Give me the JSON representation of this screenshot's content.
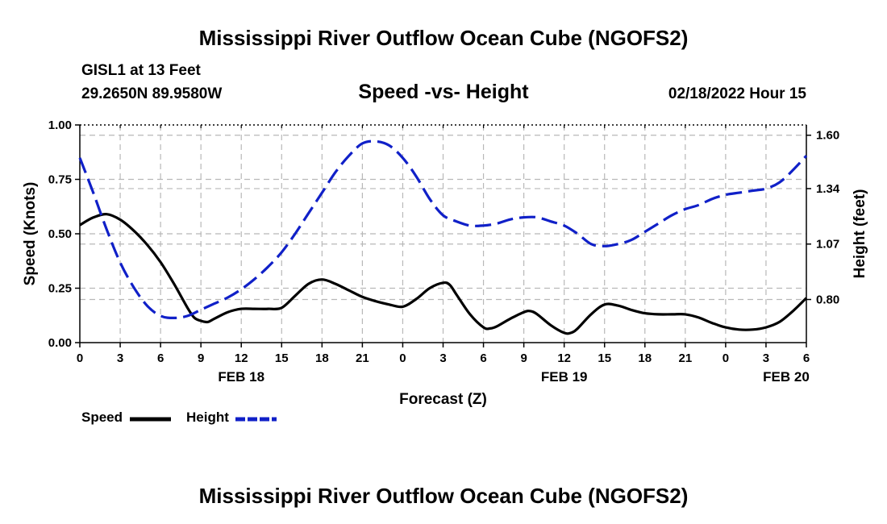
{
  "page": {
    "title_top": "Mississippi River Outflow Ocean Cube (NGOFS2)",
    "title_bottom": "Mississippi River Outflow Ocean Cube (NGOFS2)",
    "station": "GISL1 at 13 Feet",
    "coords": "29.2650N  89.9580W",
    "subtitle": "Speed -vs- Height",
    "datetime": "02/18/2022 Hour 15",
    "legend": {
      "speed_label": "Speed",
      "height_label": "Height"
    }
  },
  "chart_data": {
    "type": "line",
    "title": "Speed -vs- Height",
    "xlabel": "Forecast (Z)",
    "ylabel": "Speed (Knots)",
    "y2label": "Height (feet)",
    "grid": true,
    "legend_position": "bottom-left",
    "x_range": [
      0,
      54
    ],
    "ylim": [
      0,
      1.0
    ],
    "y2lim": [
      0.59,
      1.65
    ],
    "x_ticks": [
      0,
      3,
      6,
      9,
      12,
      15,
      18,
      21,
      24,
      27,
      30,
      33,
      36,
      39,
      42,
      45,
      48,
      51,
      54
    ],
    "x_tick_labels": [
      "0",
      "3",
      "6",
      "9",
      "12",
      "15",
      "18",
      "21",
      "0",
      "3",
      "6",
      "9",
      "12",
      "15",
      "18",
      "21",
      "0",
      "3",
      "6"
    ],
    "date_labels": [
      {
        "x": 12,
        "label": "FEB 18"
      },
      {
        "x": 36,
        "label": "FEB 19"
      },
      {
        "x": 52.5,
        "label": "FEB 20"
      }
    ],
    "y_ticks": [
      0,
      0.25,
      0.5,
      0.75,
      1.0
    ],
    "y_tick_labels": [
      "0.00",
      "0.25",
      "0.50",
      "0.75",
      "1.00"
    ],
    "y2_ticks": [
      0.8,
      1.07,
      1.34,
      1.6
    ],
    "y2_tick_labels": [
      "0.80",
      "1.07",
      "1.34",
      "1.60"
    ],
    "series": [
      {
        "name": "Speed",
        "axis": "left",
        "color": "#000000",
        "style": "solid",
        "points": [
          [
            0,
            0.54
          ],
          [
            1,
            0.575
          ],
          [
            2,
            0.59
          ],
          [
            3,
            0.565
          ],
          [
            4,
            0.515
          ],
          [
            5,
            0.45
          ],
          [
            6,
            0.37
          ],
          [
            7,
            0.27
          ],
          [
            8,
            0.16
          ],
          [
            8.5,
            0.115
          ],
          [
            9,
            0.1
          ],
          [
            9.5,
            0.095
          ],
          [
            10,
            0.11
          ],
          [
            11,
            0.14
          ],
          [
            12,
            0.155
          ],
          [
            13,
            0.155
          ],
          [
            14,
            0.155
          ],
          [
            15,
            0.16
          ],
          [
            16,
            0.215
          ],
          [
            17,
            0.27
          ],
          [
            18,
            0.29
          ],
          [
            19,
            0.27
          ],
          [
            20,
            0.24
          ],
          [
            21,
            0.21
          ],
          [
            22,
            0.19
          ],
          [
            23,
            0.175
          ],
          [
            24,
            0.165
          ],
          [
            25,
            0.2
          ],
          [
            26,
            0.25
          ],
          [
            27,
            0.275
          ],
          [
            27.5,
            0.265
          ],
          [
            28,
            0.22
          ],
          [
            29,
            0.13
          ],
          [
            30,
            0.07
          ],
          [
            30.5,
            0.065
          ],
          [
            31,
            0.075
          ],
          [
            32,
            0.11
          ],
          [
            33,
            0.14
          ],
          [
            33.5,
            0.145
          ],
          [
            34,
            0.13
          ],
          [
            35,
            0.08
          ],
          [
            36,
            0.045
          ],
          [
            36.5,
            0.045
          ],
          [
            37,
            0.065
          ],
          [
            38,
            0.13
          ],
          [
            39,
            0.175
          ],
          [
            40,
            0.17
          ],
          [
            41,
            0.15
          ],
          [
            42,
            0.135
          ],
          [
            43,
            0.13
          ],
          [
            44,
            0.13
          ],
          [
            45,
            0.13
          ],
          [
            46,
            0.115
          ],
          [
            47,
            0.09
          ],
          [
            48,
            0.07
          ],
          [
            49,
            0.06
          ],
          [
            50,
            0.06
          ],
          [
            51,
            0.07
          ],
          [
            52,
            0.095
          ],
          [
            53,
            0.145
          ],
          [
            54,
            0.205
          ]
        ]
      },
      {
        "name": "Height",
        "axis": "right",
        "color": "#1020c8",
        "style": "dashed",
        "points": [
          [
            0,
            1.49
          ],
          [
            1,
            1.32
          ],
          [
            2,
            1.14
          ],
          [
            3,
            0.98
          ],
          [
            4,
            0.86
          ],
          [
            5,
            0.77
          ],
          [
            6,
            0.72
          ],
          [
            7,
            0.71
          ],
          [
            8,
            0.72
          ],
          [
            9,
            0.75
          ],
          [
            10,
            0.78
          ],
          [
            11,
            0.81
          ],
          [
            12,
            0.85
          ],
          [
            13,
            0.9
          ],
          [
            14,
            0.96
          ],
          [
            15,
            1.03
          ],
          [
            16,
            1.12
          ],
          [
            17,
            1.22
          ],
          [
            18,
            1.32
          ],
          [
            19,
            1.42
          ],
          [
            20,
            1.5
          ],
          [
            21,
            1.56
          ],
          [
            22,
            1.57
          ],
          [
            23,
            1.55
          ],
          [
            24,
            1.49
          ],
          [
            25,
            1.4
          ],
          [
            26,
            1.29
          ],
          [
            27,
            1.21
          ],
          [
            28,
            1.18
          ],
          [
            29,
            1.16
          ],
          [
            30,
            1.16
          ],
          [
            31,
            1.17
          ],
          [
            32,
            1.19
          ],
          [
            33,
            1.2
          ],
          [
            34,
            1.2
          ],
          [
            35,
            1.18
          ],
          [
            36,
            1.16
          ],
          [
            37,
            1.12
          ],
          [
            38,
            1.07
          ],
          [
            39,
            1.06
          ],
          [
            40,
            1.07
          ],
          [
            41,
            1.09
          ],
          [
            42,
            1.13
          ],
          [
            43,
            1.17
          ],
          [
            44,
            1.21
          ],
          [
            45,
            1.24
          ],
          [
            46,
            1.26
          ],
          [
            47,
            1.29
          ],
          [
            48,
            1.31
          ],
          [
            49,
            1.32
          ],
          [
            50,
            1.33
          ],
          [
            51,
            1.34
          ],
          [
            52,
            1.37
          ],
          [
            53,
            1.43
          ],
          [
            54,
            1.5
          ]
        ]
      }
    ]
  }
}
